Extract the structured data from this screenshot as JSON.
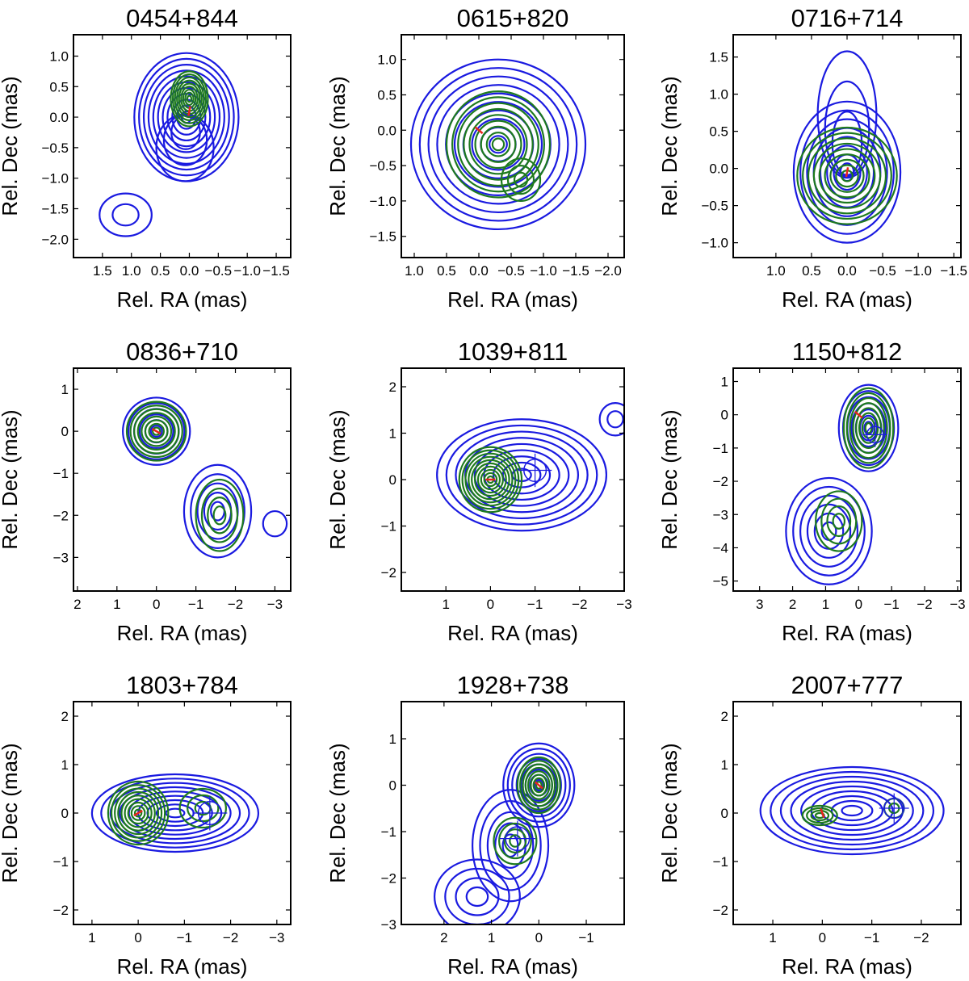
{
  "chart_data": [
    {
      "type": "contour",
      "title": "0454+844",
      "xlabel": "Rel. RA (mas)",
      "ylabel": "Rel. Dec (mas)",
      "xlim": [
        2.0,
        -1.75
      ],
      "ylim": [
        -2.3,
        1.35
      ],
      "xticks": [
        1.5,
        1.0,
        0.5,
        0.0,
        -0.5,
        -1.0,
        -1.5
      ],
      "xtick_labels": [
        "1.5",
        "1.0",
        "0.5",
        "0.0",
        "−0.5",
        "−1.0",
        "−1.5"
      ],
      "yticks": [
        1.0,
        0.5,
        0.0,
        -0.5,
        -1.0,
        -1.5,
        -2.0
      ],
      "ytick_labels": [
        "1.0",
        "0.5",
        "0.0",
        "−0.5",
        "−1.0",
        "−1.5",
        "−2.0"
      ],
      "components": [
        {
          "color": "blue",
          "x": 0.05,
          "y": 0.0,
          "rx": 0.9,
          "ry": 1.05,
          "n": 11,
          "tail": [
            0.1,
            -1.0
          ]
        },
        {
          "color": "blue",
          "x": 1.1,
          "y": -1.6,
          "rx": 0.45,
          "ry": 0.35,
          "n": 2
        },
        {
          "color": "green",
          "x": 0.0,
          "y": 0.3,
          "rx": 0.32,
          "ry": 0.45,
          "n": 9
        }
      ],
      "core": {
        "x": 0.0,
        "y": 0.1,
        "angle": 80
      }
    },
    {
      "type": "contour",
      "title": "0615+820",
      "xlabel": "Rel. RA (mas)",
      "ylabel": "Rel. Dec (mas)",
      "xlim": [
        1.2,
        -2.25
      ],
      "ylim": [
        -1.8,
        1.35
      ],
      "xticks": [
        1.0,
        0.5,
        0.0,
        -0.5,
        -1.0,
        -1.5,
        -2.0
      ],
      "xtick_labels": [
        "1.0",
        "0.5",
        "0.0",
        "−0.5",
        "−1.0",
        "−1.5",
        "−2.0"
      ],
      "yticks": [
        1.0,
        0.5,
        0.0,
        -0.5,
        -1.0,
        -1.5
      ],
      "ytick_labels": [
        "1.0",
        "0.5",
        "0.0",
        "−0.5",
        "−1.0",
        "−1.5"
      ],
      "components": [
        {
          "color": "blue",
          "x": -0.3,
          "y": -0.2,
          "rx": 1.35,
          "ry": 1.2,
          "n": 10
        },
        {
          "color": "green",
          "x": -0.3,
          "y": -0.2,
          "rx": 0.8,
          "ry": 0.75,
          "n": 9
        },
        {
          "color": "green",
          "x": -0.65,
          "y": -0.7,
          "rx": 0.3,
          "ry": 0.3,
          "n": 3
        }
      ],
      "core": {
        "x": 0.0,
        "y": 0.0,
        "angle": -40
      }
    },
    {
      "type": "contour",
      "title": "0716+714",
      "xlabel": "Rel. RA (mas)",
      "ylabel": "Rel. Dec (mas)",
      "xlim": [
        1.6,
        -1.6
      ],
      "ylim": [
        -1.2,
        1.8
      ],
      "xticks": [
        1.0,
        0.5,
        0.0,
        -0.5,
        -1.0,
        -1.5
      ],
      "xtick_labels": [
        "1.0",
        "0.5",
        "0.0",
        "−0.5",
        "−1.0",
        "−1.5"
      ],
      "yticks": [
        1.5,
        1.0,
        0.5,
        0.0,
        -0.5,
        -1.0
      ],
      "ytick_labels": [
        "1.5",
        "1.0",
        "0.5",
        "0.0",
        "−0.5",
        "−1.0"
      ],
      "components": [
        {
          "color": "blue",
          "x": 0.0,
          "y": -0.05,
          "rx": 0.75,
          "ry": 0.95,
          "n": 8,
          "tail": [
            0.0,
            1.5
          ]
        },
        {
          "color": "green",
          "x": 0.0,
          "y": -0.1,
          "rx": 0.7,
          "ry": 0.65,
          "n": 9
        }
      ],
      "core": {
        "x": 0.0,
        "y": -0.05,
        "angle": 80
      }
    },
    {
      "type": "contour",
      "title": "0836+710",
      "xlabel": "Rel. RA (mas)",
      "ylabel": "Rel. Dec (mas)",
      "xlim": [
        2.1,
        -3.4
      ],
      "ylim": [
        -3.8,
        1.5
      ],
      "xticks": [
        2,
        1,
        0,
        -1,
        -2,
        -3
      ],
      "xtick_labels": [
        "2",
        "1",
        "0",
        "−1",
        "−2",
        "−3"
      ],
      "yticks": [
        1,
        0,
        -1,
        -2,
        -3
      ],
      "ytick_labels": [
        "1",
        "0",
        "−1",
        "−2",
        "−3"
      ],
      "components": [
        {
          "color": "blue",
          "x": 0.0,
          "y": 0.0,
          "rx": 0.85,
          "ry": 0.8,
          "n": 6
        },
        {
          "color": "blue",
          "x": -1.55,
          "y": -1.9,
          "rx": 0.85,
          "ry": 1.1,
          "n": 5
        },
        {
          "color": "blue",
          "x": -3.0,
          "y": -2.2,
          "rx": 0.3,
          "ry": 0.3,
          "n": 1
        },
        {
          "color": "green",
          "x": 0.0,
          "y": 0.0,
          "rx": 0.75,
          "ry": 0.7,
          "n": 8
        },
        {
          "color": "green",
          "x": -1.6,
          "y": -2.0,
          "rx": 0.6,
          "ry": 0.85,
          "n": 4
        }
      ],
      "core": {
        "x": 0.0,
        "y": 0.0,
        "angle": -30
      }
    },
    {
      "type": "contour",
      "title": "1039+811",
      "xlabel": "Rel. RA (mas)",
      "ylabel": "Rel. Dec (mas)",
      "xlim": [
        2.0,
        -3.0
      ],
      "ylim": [
        -2.4,
        2.4
      ],
      "xticks": [
        1,
        0,
        -1,
        -2,
        -3
      ],
      "xtick_labels": [
        "1",
        "0",
        "−1",
        "−2",
        "−3"
      ],
      "yticks": [
        2,
        1,
        0,
        -1,
        -2
      ],
      "ytick_labels": [
        "2",
        "1",
        "0",
        "−1",
        "−2"
      ],
      "components": [
        {
          "color": "blue",
          "x": -0.7,
          "y": 0.1,
          "rx": 1.9,
          "ry": 1.2,
          "n": 9
        },
        {
          "color": "blue",
          "x": -2.8,
          "y": 1.3,
          "rx": 0.35,
          "ry": 0.35,
          "n": 2
        },
        {
          "color": "green",
          "x": 0.0,
          "y": 0.0,
          "rx": 0.7,
          "ry": 0.7,
          "n": 10
        }
      ],
      "core": {
        "x": 0.0,
        "y": 0.0,
        "angle": 0
      },
      "markers": [
        {
          "x": -1.0,
          "y": 0.2,
          "r": 0.25
        }
      ]
    },
    {
      "type": "contour",
      "title": "1150+812",
      "xlabel": "Rel. RA (mas)",
      "ylabel": "Rel. Dec (mas)",
      "xlim": [
        3.8,
        -3.1
      ],
      "ylim": [
        -5.3,
        1.4
      ],
      "xticks": [
        3,
        2,
        1,
        0,
        -1,
        -2,
        -3
      ],
      "xtick_labels": [
        "3",
        "2",
        "1",
        "0",
        "−1",
        "−2",
        "−3"
      ],
      "yticks": [
        1,
        0,
        -1,
        -2,
        -3,
        -4,
        -5
      ],
      "ytick_labels": [
        "1",
        "0",
        "−1",
        "−2",
        "−3",
        "−4",
        "−5"
      ],
      "components": [
        {
          "color": "blue",
          "x": -0.3,
          "y": -0.4,
          "rx": 0.9,
          "ry": 1.3,
          "n": 7
        },
        {
          "color": "blue",
          "x": 0.9,
          "y": -3.5,
          "rx": 1.3,
          "ry": 1.6,
          "n": 6
        },
        {
          "color": "green",
          "x": -0.3,
          "y": -0.4,
          "rx": 0.75,
          "ry": 1.2,
          "n": 8
        },
        {
          "color": "green",
          "x": 0.6,
          "y": -3.2,
          "rx": 0.7,
          "ry": 0.9,
          "n": 4
        }
      ],
      "core": {
        "x": 0.0,
        "y": 0.0,
        "angle": -40
      },
      "markers": [
        {
          "x": -0.5,
          "y": -0.6,
          "r": 0.25
        }
      ]
    },
    {
      "type": "contour",
      "title": "1803+784",
      "xlabel": "Rel. RA (mas)",
      "ylabel": "Rel. Dec (mas)",
      "xlim": [
        1.4,
        -3.3
      ],
      "ylim": [
        -2.3,
        2.3
      ],
      "xticks": [
        1,
        0,
        -1,
        -2,
        -3
      ],
      "xtick_labels": [
        "1",
        "0",
        "−1",
        "−2",
        "−3"
      ],
      "yticks": [
        2,
        1,
        0,
        -1,
        -2
      ],
      "ytick_labels": [
        "2",
        "1",
        "0",
        "−1",
        "−2"
      ],
      "components": [
        {
          "color": "blue",
          "x": -0.8,
          "y": 0.0,
          "rx": 1.8,
          "ry": 0.8,
          "n": 9
        },
        {
          "color": "green",
          "x": 0.0,
          "y": 0.0,
          "rx": 0.65,
          "ry": 0.65,
          "n": 9
        },
        {
          "color": "green",
          "x": -1.4,
          "y": 0.1,
          "rx": 0.5,
          "ry": 0.4,
          "n": 3
        }
      ],
      "core": {
        "x": 0.0,
        "y": 0.0,
        "angle": 30
      },
      "markers": [
        {
          "x": -1.55,
          "y": 0.0,
          "r": 0.25
        }
      ]
    },
    {
      "type": "contour",
      "title": "1928+738",
      "xlabel": "Rel. RA (mas)",
      "ylabel": "Rel. Dec (mas)",
      "xlim": [
        2.9,
        -1.8
      ],
      "ylim": [
        -3.0,
        1.8
      ],
      "xticks": [
        2,
        1,
        0,
        -1
      ],
      "xtick_labels": [
        "2",
        "1",
        "0",
        "−1"
      ],
      "yticks": [
        1,
        0,
        -1,
        -2,
        -3
      ],
      "ytick_labels": [
        "1",
        "0",
        "−1",
        "−2",
        "−3"
      ],
      "components": [
        {
          "color": "blue",
          "x": 0.0,
          "y": 0.0,
          "rx": 0.75,
          "ry": 0.9,
          "n": 8
        },
        {
          "color": "blue",
          "x": 0.6,
          "y": -1.3,
          "rx": 0.8,
          "ry": 1.2,
          "n": 5
        },
        {
          "color": "blue",
          "x": 1.3,
          "y": -2.4,
          "rx": 0.9,
          "ry": 0.8,
          "n": 4
        },
        {
          "color": "green",
          "x": 0.0,
          "y": 0.0,
          "rx": 0.45,
          "ry": 0.6,
          "n": 8
        },
        {
          "color": "green",
          "x": 0.5,
          "y": -1.2,
          "rx": 0.45,
          "ry": 0.5,
          "n": 4
        }
      ],
      "core": {
        "x": 0.0,
        "y": 0.0,
        "angle": -40
      },
      "markers": [
        {
          "x": 0.45,
          "y": -1.15,
          "r": 0.25
        }
      ]
    },
    {
      "type": "contour",
      "title": "2007+777",
      "xlabel": "Rel. RA (mas)",
      "ylabel": "Rel. Dec (mas)",
      "xlim": [
        1.8,
        -2.8
      ],
      "ylim": [
        -2.3,
        2.3
      ],
      "xticks": [
        1,
        0,
        -1,
        -2
      ],
      "xtick_labels": [
        "1",
        "0",
        "−1",
        "−2"
      ],
      "yticks": [
        2,
        1,
        0,
        -1,
        -2
      ],
      "ytick_labels": [
        "2",
        "1",
        "0",
        "−1",
        "−2"
      ],
      "components": [
        {
          "color": "blue",
          "x": -0.6,
          "y": 0.05,
          "rx": 1.85,
          "ry": 0.9,
          "n": 9
        },
        {
          "color": "green",
          "x": 0.05,
          "y": -0.05,
          "rx": 0.35,
          "ry": 0.2,
          "n": 4
        },
        {
          "color": "green",
          "x": -1.45,
          "y": 0.1,
          "rx": 0.2,
          "ry": 0.2,
          "n": 2
        }
      ],
      "core": {
        "x": 0.0,
        "y": 0.0,
        "angle": -70
      },
      "markers": [
        {
          "x": -1.45,
          "y": 0.1,
          "r": 0.2
        }
      ]
    }
  ],
  "colors": {
    "blue": "#1a1ae0",
    "green": "#1e7a1e",
    "core": "#e8241c"
  }
}
